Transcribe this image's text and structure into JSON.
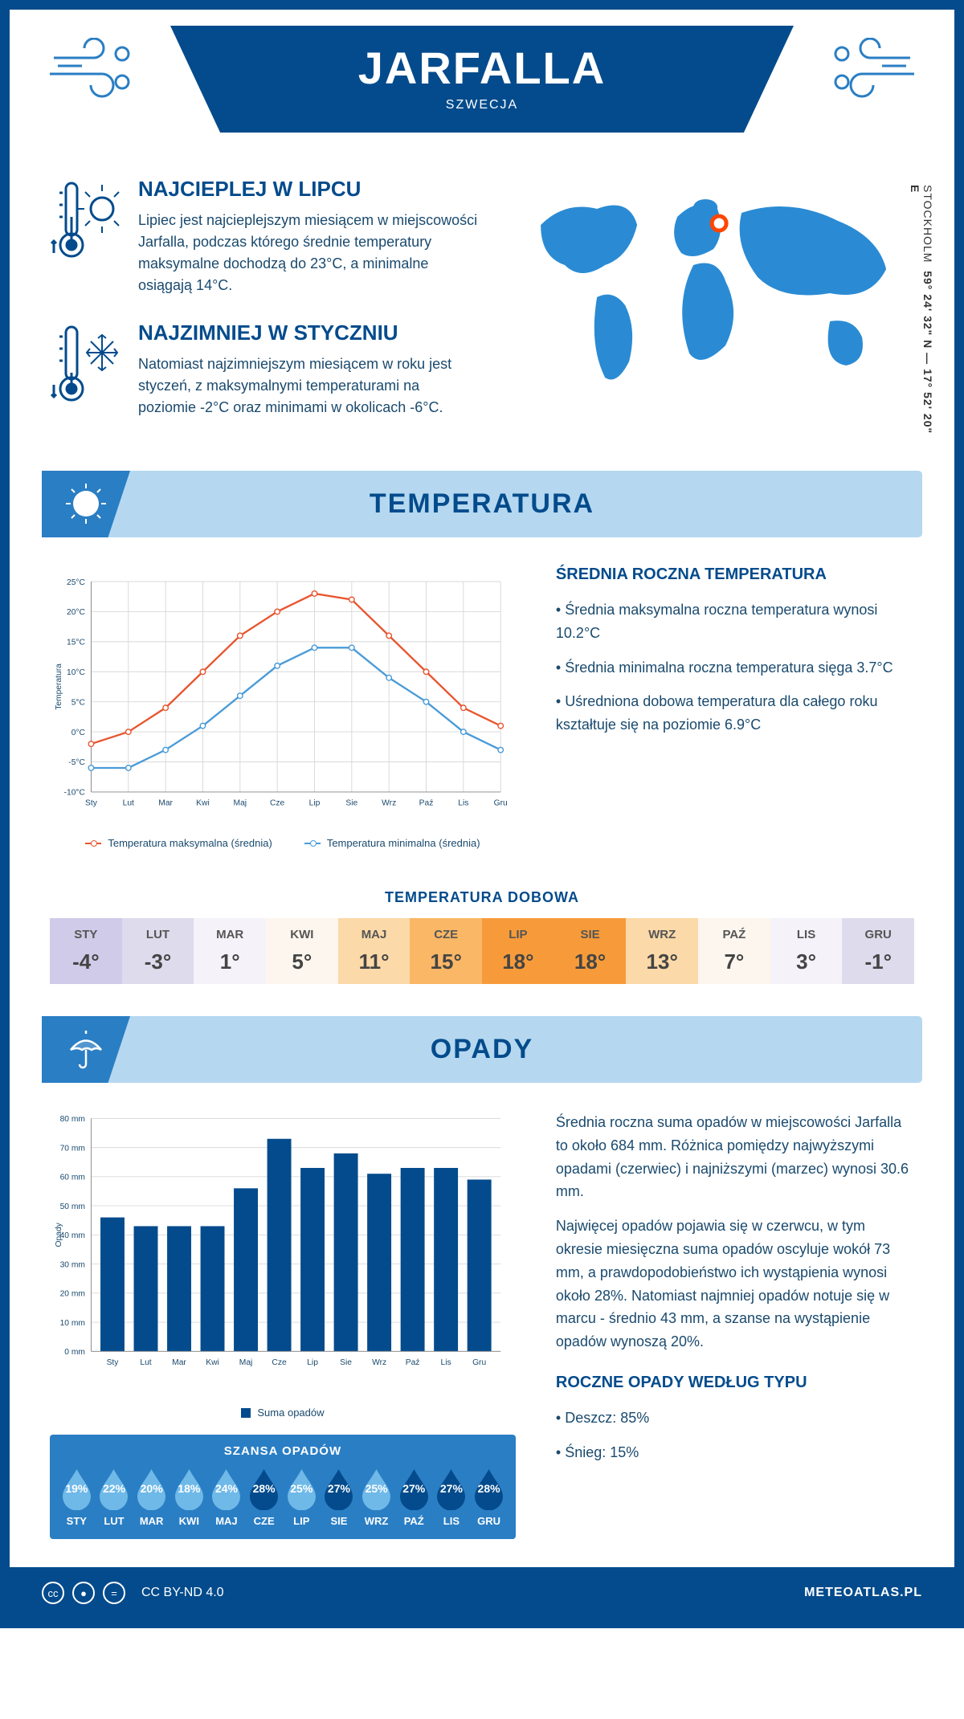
{
  "header": {
    "title": "JARFALLA",
    "subtitle": "SZWECJA"
  },
  "coords": {
    "lat": "59° 24' 32\" N",
    "lon": "17° 52' 20\" E",
    "city": "STOCKHOLM"
  },
  "facts": {
    "warm": {
      "title": "NAJCIEPLEJ W LIPCU",
      "text": "Lipiec jest najcieplejszym miesiącem w miejscowości Jarfalla, podczas którego średnie temperatury maksymalne dochodzą do 23°C, a minimalne osiągają 14°C."
    },
    "cold": {
      "title": "NAJZIMNIEJ W STYCZNIU",
      "text": "Natomiast najzimniejszym miesiącem w roku jest styczeń, z maksymalnymi temperaturami na poziomie -2°C oraz minimami w okolicach -6°C."
    }
  },
  "temperature": {
    "section_title": "TEMPERATURA",
    "chart": {
      "type": "line",
      "months": [
        "Sty",
        "Lut",
        "Mar",
        "Kwi",
        "Maj",
        "Cze",
        "Lip",
        "Sie",
        "Wrz",
        "Paź",
        "Lis",
        "Gru"
      ],
      "max_values": [
        -2,
        0,
        4,
        10,
        16,
        20,
        23,
        22,
        16,
        10,
        4,
        1
      ],
      "min_values": [
        -6,
        -6,
        -3,
        1,
        6,
        11,
        14,
        14,
        9,
        5,
        0,
        -3
      ],
      "max_color": "#e8552f",
      "min_color": "#4a9bd8",
      "ylim": [
        -10,
        25
      ],
      "ytick_step": 5,
      "y_label": "Temperatura",
      "grid_color": "#d8d8d8",
      "legend_max": "Temperatura maksymalna (średnia)",
      "legend_min": "Temperatura minimalna (średnia)"
    },
    "annual": {
      "title": "ŚREDNIA ROCZNA TEMPERATURA",
      "items": [
        "Średnia maksymalna roczna temperatura wynosi 10.2°C",
        "Średnia minimalna roczna temperatura sięga 3.7°C",
        "Uśredniona dobowa temperatura dla całego roku kształtuje się na poziomie 6.9°C"
      ]
    },
    "daily": {
      "title": "TEMPERATURA DOBOWA",
      "months": [
        "STY",
        "LUT",
        "MAR",
        "KWI",
        "MAJ",
        "CZE",
        "LIP",
        "SIE",
        "WRZ",
        "PAŹ",
        "LIS",
        "GRU"
      ],
      "values": [
        "-4°",
        "-3°",
        "1°",
        "5°",
        "11°",
        "15°",
        "18°",
        "18°",
        "13°",
        "7°",
        "3°",
        "-1°"
      ],
      "colors": [
        "#cfcbe8",
        "#dedbec",
        "#f5f2fa",
        "#fdf6ee",
        "#fcd9a8",
        "#fab766",
        "#f79b3a",
        "#f79b3a",
        "#fcd9a8",
        "#fdf6ee",
        "#f5f2fa",
        "#dedbec"
      ]
    }
  },
  "precip": {
    "section_title": "OPADY",
    "chart": {
      "type": "bar",
      "months": [
        "Sty",
        "Lut",
        "Mar",
        "Kwi",
        "Maj",
        "Cze",
        "Lip",
        "Sie",
        "Wrz",
        "Paź",
        "Lis",
        "Gru"
      ],
      "values": [
        46,
        43,
        43,
        43,
        56,
        73,
        63,
        68,
        61,
        63,
        63,
        59
      ],
      "bar_color": "#034b8c",
      "ylim": [
        0,
        80
      ],
      "ytick_step": 10,
      "y_label": "Opady",
      "legend": "Suma opadów"
    },
    "text1": "Średnia roczna suma opadów w miejscowości Jarfalla to około 684 mm. Różnica pomiędzy najwyższymi opadami (czerwiec) i najniższymi (marzec) wynosi 30.6 mm.",
    "text2": "Najwięcej opadów pojawia się w czerwcu, w tym okresie miesięczna suma opadów oscyluje wokół 73 mm, a prawdopodobieństwo ich wystąpienia wynosi około 28%. Natomiast najmniej opadów notuje się w marcu - średnio 43 mm, a szanse na wystąpienie opadów wynoszą 20%.",
    "chance": {
      "title": "SZANSA OPADÓW",
      "months": [
        "STY",
        "LUT",
        "MAR",
        "KWI",
        "MAJ",
        "CZE",
        "LIP",
        "SIE",
        "WRZ",
        "PAŹ",
        "LIS",
        "GRU"
      ],
      "values": [
        19,
        22,
        20,
        18,
        24,
        28,
        25,
        27,
        25,
        27,
        27,
        28
      ],
      "light_color": "#6fb9e8",
      "dark_color": "#034b8c"
    },
    "type": {
      "title": "ROCZNE OPADY WEDŁUG TYPU",
      "rain": "Deszcz: 85%",
      "snow": "Śnieg: 15%"
    }
  },
  "footer": {
    "license": "CC BY-ND 4.0",
    "site": "METEOATLAS.PL"
  }
}
